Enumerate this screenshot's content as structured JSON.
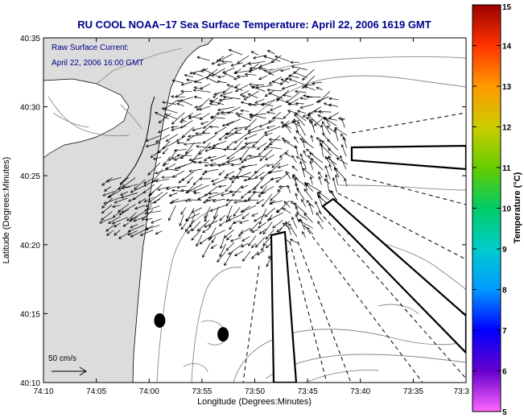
{
  "chart_data": {
    "type": "vector-field",
    "title": "RU COOL  NOAA−17  Sea Surface Temperature:  April 22, 2006 1619 GMT",
    "annotation": [
      "Raw Surface Current:",
      "April 22, 2006 16:00 GMT"
    ],
    "scale_label": "50 cm/s",
    "xlabel": "Longitude (Degrees:Minutes)",
    "ylabel": "Latitude (Degrees:Minutes)",
    "xlim": [
      -74.1667,
      -73.5
    ],
    "ylim": [
      40.1667,
      40.5833
    ],
    "x_ticks": [
      {
        "v": -74.1667,
        "label": "74:10"
      },
      {
        "v": -74.0833,
        "label": "74:05"
      },
      {
        "v": -74.0,
        "label": "74:00"
      },
      {
        "v": -73.9167,
        "label": "73:55"
      },
      {
        "v": -73.8333,
        "label": "73:50"
      },
      {
        "v": -73.75,
        "label": "73:45"
      },
      {
        "v": -73.6667,
        "label": "73:40"
      },
      {
        "v": -73.5833,
        "label": "73:35"
      },
      {
        "v": -73.5,
        "label": "73:3"
      }
    ],
    "y_ticks": [
      {
        "v": 40.1667,
        "label": "40:10"
      },
      {
        "v": 40.25,
        "label": "40:15"
      },
      {
        "v": 40.3333,
        "label": "40:20"
      },
      {
        "v": 40.4167,
        "label": "40:25"
      },
      {
        "v": 40.5,
        "label": "40:30"
      },
      {
        "v": 40.5833,
        "label": "40:35"
      }
    ],
    "colorbar": {
      "label": "Temperature (°C)",
      "min": 5,
      "max": 15,
      "ticks": [
        "5",
        "6",
        "7",
        "8",
        "9",
        "10",
        "11",
        "12",
        "13",
        "14",
        "15"
      ],
      "colors": [
        "#ff66ff",
        "#6600cc",
        "#0000ff",
        "#0099ff",
        "#00cccc",
        "#00cc66",
        "#66cc00",
        "#cccc00",
        "#ff9900",
        "#ff3300",
        "#990000"
      ]
    },
    "markers": [
      {
        "lon": -73.9833,
        "lat": 40.2417,
        "shape": "filled-ellipse"
      },
      {
        "lon": -73.8833,
        "lat": 40.225,
        "shape": "filled-ellipse"
      }
    ],
    "colors": {
      "title": "#00008b",
      "annotation": "#00008b",
      "land": "#dcdcdc",
      "arrows": "#000000",
      "contours": "#888888"
    }
  }
}
